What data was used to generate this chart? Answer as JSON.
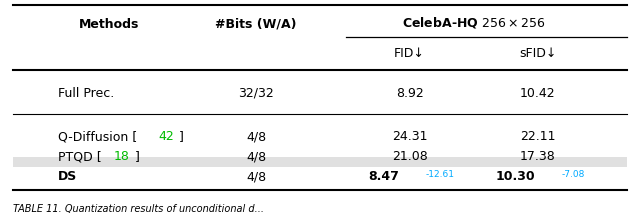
{
  "col_headers": [
    "Methods",
    "#Bits (W/A)",
    "FID↓",
    "sFID↓"
  ],
  "group_header": "CelebA-HQ $256 \\times 256$",
  "rows": [
    {
      "method": "Full Prec.",
      "bits": "32/32",
      "fid": "8.92",
      "sfid": "10.42",
      "highlight": false,
      "bold": false
    },
    {
      "method": "Q-Diffusion [42]",
      "bits": "4/8",
      "fid": "24.31",
      "sfid": "22.11",
      "highlight": false,
      "bold": false
    },
    {
      "method": "PTQD [18]",
      "bits": "4/8",
      "fid": "21.08",
      "sfid": "17.38",
      "highlight": false,
      "bold": false
    },
    {
      "method": "DS",
      "bits": "4/8",
      "fid": "8.47",
      "sfid": "10.30",
      "fid_diff": "-12.61",
      "sfid_diff": "-7.08",
      "highlight": true,
      "bold": true
    }
  ],
  "bg_color": "#ffffff",
  "highlight_color": "#e0e0e0",
  "ref_color": "#00bb00",
  "diff_color": "#00aaff",
  "caption": "TABLE 11. Quantization results of unconditional d..."
}
